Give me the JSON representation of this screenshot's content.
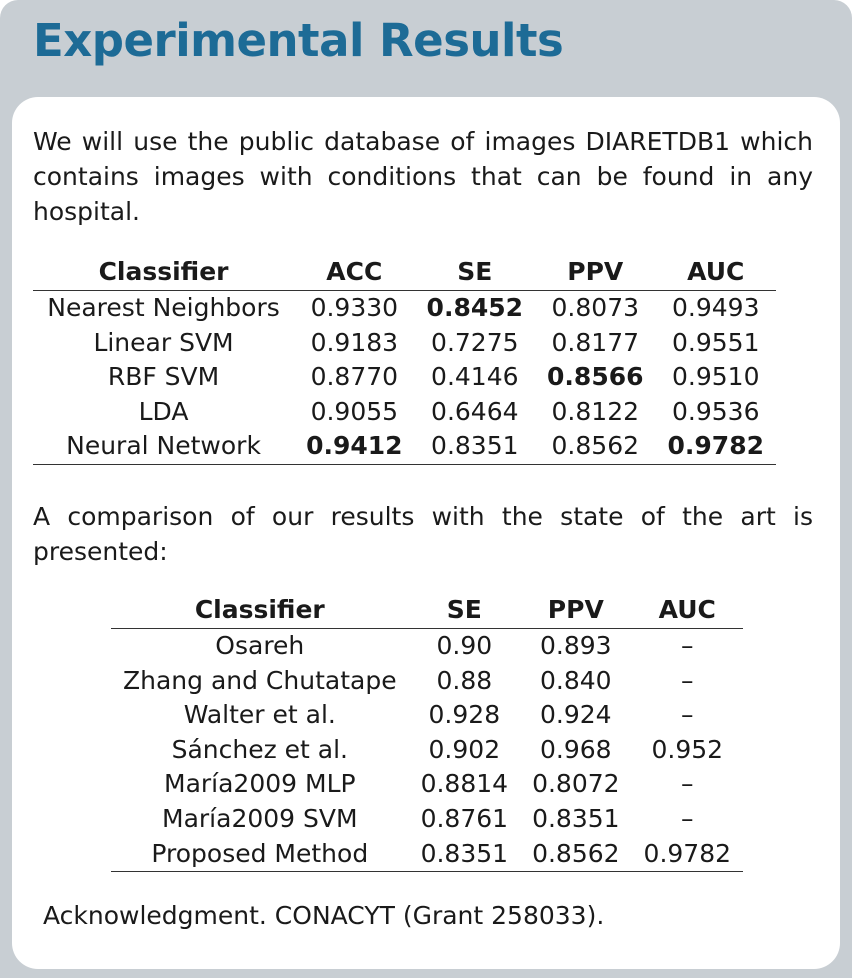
{
  "slide": {
    "title": "Experimental Results",
    "paragraph1": "We will use the public database of images DIARETDB1 which contains images with conditions that can be found in any hospital.",
    "paragraph2": "A comparison of our results with the state of the art is presented:",
    "acknowledgment": "Acknowledgment. CONACYT (Grant 258033)."
  },
  "table1": {
    "headers": [
      "Classifier",
      "ACC",
      "SE",
      "PPV",
      "AUC"
    ],
    "rows": [
      [
        "Nearest Neighbors",
        "0.9330",
        "0.8452",
        "0.8073",
        "0.9493"
      ],
      [
        "Linear SVM",
        "0.9183",
        "0.7275",
        "0.8177",
        "0.9551"
      ],
      [
        "RBF SVM",
        "0.8770",
        "0.4146",
        "0.8566",
        "0.9510"
      ],
      [
        "LDA",
        "0.9055",
        "0.6464",
        "0.8122",
        "0.9536"
      ],
      [
        "Neural Network",
        "0.9412",
        "0.8351",
        "0.8562",
        "0.9782"
      ]
    ],
    "bold": [
      [
        0,
        2
      ],
      [
        2,
        3
      ],
      [
        4,
        1
      ],
      [
        4,
        4
      ]
    ]
  },
  "table2": {
    "headers": [
      "Classifier",
      "SE",
      "PPV",
      "AUC"
    ],
    "rows": [
      [
        "Osareh",
        "0.90",
        "0.893",
        "–"
      ],
      [
        "Zhang and Chutatape",
        "0.88",
        "0.840",
        "–"
      ],
      [
        "Walter et al.",
        "0.928",
        "0.924",
        "–"
      ],
      [
        "Sánchez et al.",
        "0.902",
        "0.968",
        "0.952"
      ],
      [
        "María2009 MLP",
        "0.8814",
        "0.8072",
        "–"
      ],
      [
        "María2009 SVM",
        "0.8761",
        "0.8351",
        "–"
      ],
      [
        "Proposed Method",
        "0.8351",
        "0.8562",
        "0.9782"
      ]
    ],
    "bold": []
  }
}
